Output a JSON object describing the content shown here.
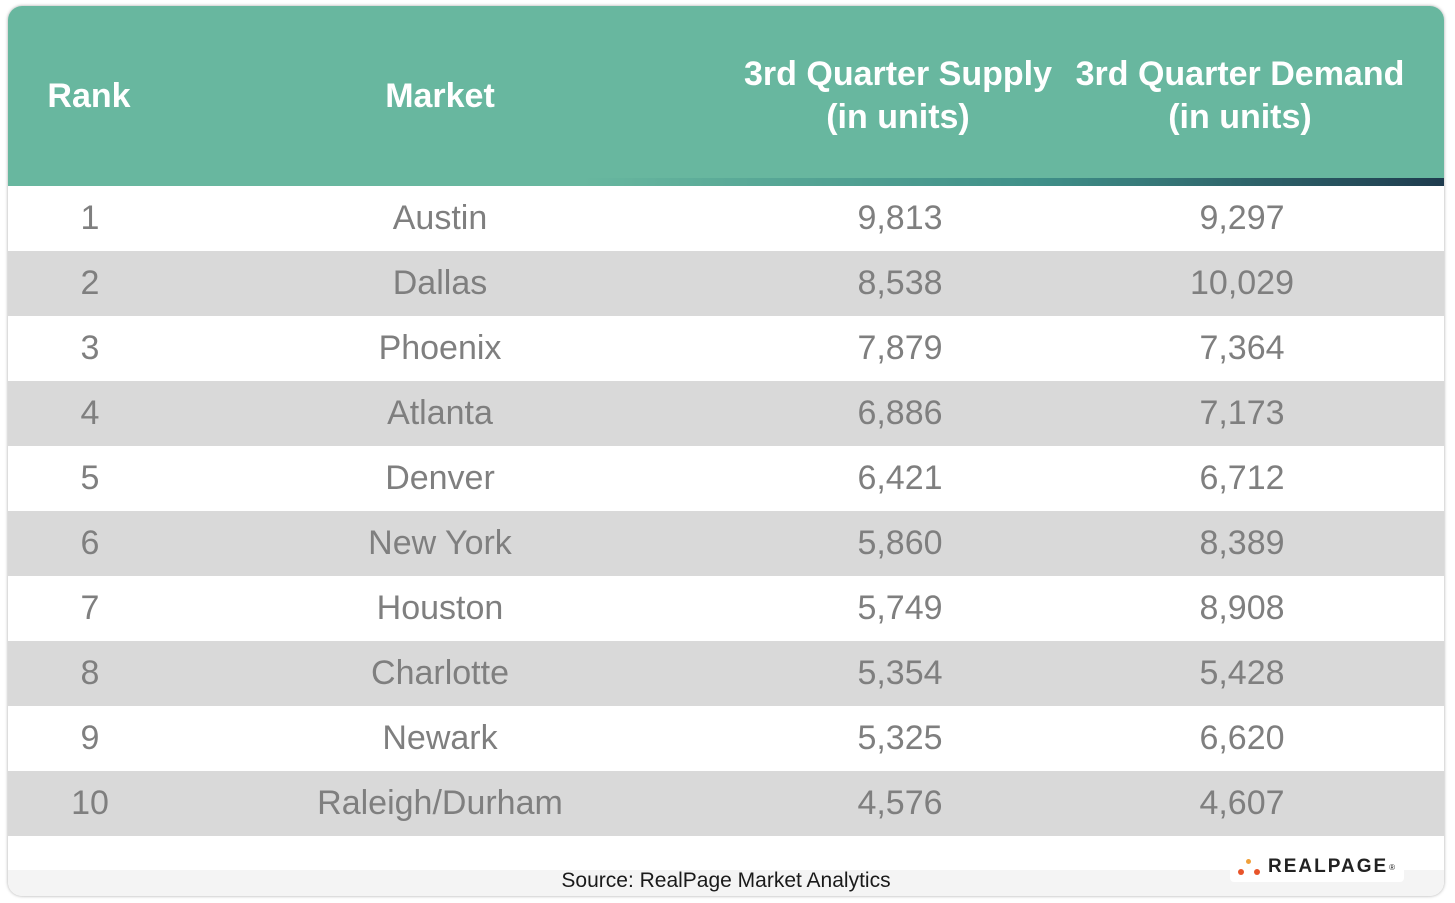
{
  "chart_data": {
    "type": "table",
    "columns": [
      "Rank",
      "Market",
      "3rd Quarter Supply\n(in units)",
      "3rd Quarter Demand\n(in units)"
    ],
    "rows": [
      {
        "rank": "1",
        "market": "Austin",
        "supply": "9,813",
        "demand": "9,297"
      },
      {
        "rank": "2",
        "market": "Dallas",
        "supply": "8,538",
        "demand": "10,029"
      },
      {
        "rank": "3",
        "market": "Phoenix",
        "supply": "7,879",
        "demand": "7,364"
      },
      {
        "rank": "4",
        "market": "Atlanta",
        "supply": "6,886",
        "demand": "7,173"
      },
      {
        "rank": "5",
        "market": "Denver",
        "supply": "6,421",
        "demand": "6,712"
      },
      {
        "rank": "6",
        "market": "New York",
        "supply": "5,860",
        "demand": "8,389"
      },
      {
        "rank": "7",
        "market": "Houston",
        "supply": "5,749",
        "demand": "8,908"
      },
      {
        "rank": "8",
        "market": "Charlotte",
        "supply": "5,354",
        "demand": "5,428"
      },
      {
        "rank": "9",
        "market": "Newark",
        "supply": "5,325",
        "demand": "6,620"
      },
      {
        "rank": "10",
        "market": "Raleigh/Durham",
        "supply": "4,576",
        "demand": "4,607"
      }
    ],
    "source": "Source: RealPage Market Analytics"
  },
  "logo": {
    "text": "REALPAGE",
    "trademark": "®",
    "dot_colors": [
      "#e8542a",
      "#f0a03a",
      "#e8542a"
    ]
  },
  "colors": {
    "header": "#68b79f",
    "stripe_end": "#1e3b4e",
    "row_alt": "#d9d9d9",
    "cell_text": "#7f7f7f"
  }
}
